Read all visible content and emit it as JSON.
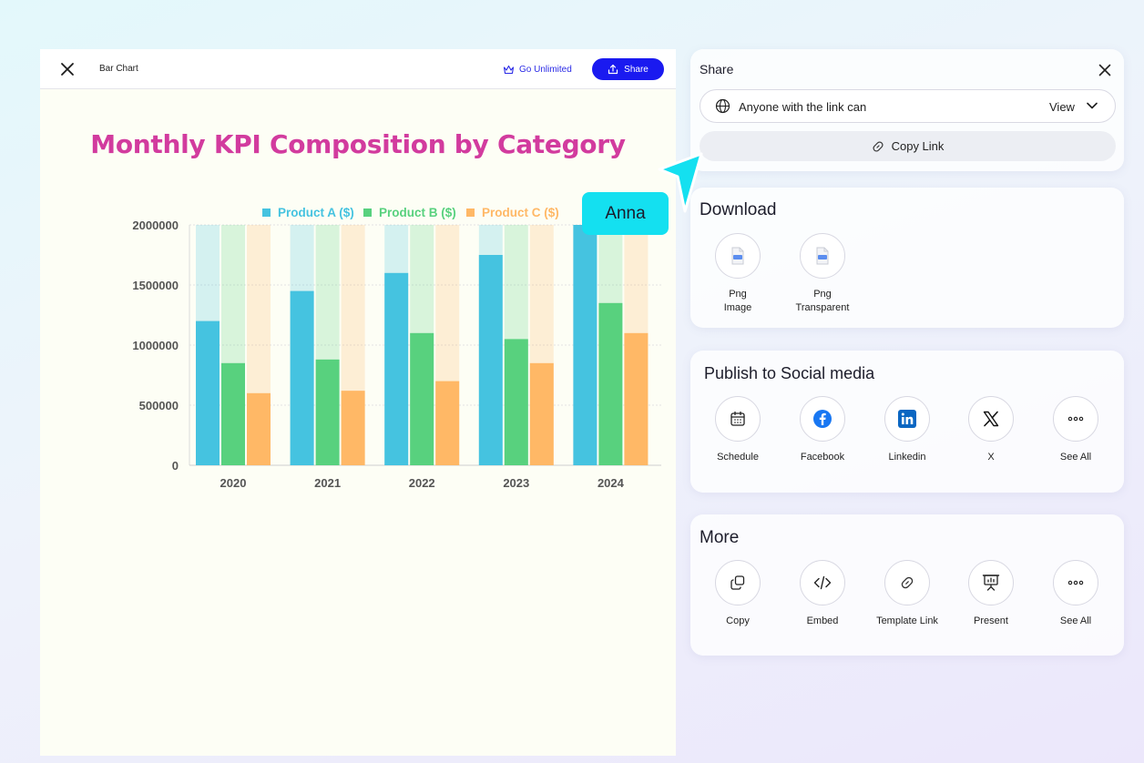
{
  "editor": {
    "doc_title": "Bar Chart",
    "go_unlimited": "Go Unlimited",
    "share_label": "Share"
  },
  "chart_data": {
    "type": "bar",
    "title": "Monthly KPI Composition by Category",
    "categories": [
      "2020",
      "2021",
      "2022",
      "2023",
      "2024"
    ],
    "series": [
      {
        "name": "Product A ($)",
        "color": "#45c3e0",
        "values": [
          1200000,
          1450000,
          1600000,
          1750000,
          2000000
        ]
      },
      {
        "name": "Product B ($)",
        "color": "#58d17e",
        "values": [
          850000,
          880000,
          1100000,
          1050000,
          1350000
        ]
      },
      {
        "name": "Product C ($)",
        "color": "#ffb866",
        "values": [
          600000,
          620000,
          700000,
          850000,
          1100000
        ]
      }
    ],
    "ylim": [
      0,
      2000000
    ],
    "yticks": [
      "0",
      "500000",
      "1000000",
      "1500000",
      "2000000"
    ],
    "legend_position": "top",
    "grid": true
  },
  "share": {
    "title": "Share",
    "access_label": "Anyone with the link can",
    "access_value": "View",
    "copy_link": "Copy Link"
  },
  "download": {
    "title": "Download",
    "items": [
      {
        "label1": "Png",
        "label2": "Image",
        "icon": "png-file-icon"
      },
      {
        "label1": "Png",
        "label2": "Transparent",
        "icon": "png-file-icon"
      }
    ]
  },
  "social": {
    "title": "Publish to Social media",
    "items": [
      {
        "label": "Schedule",
        "icon": "calendar-icon"
      },
      {
        "label": "Facebook",
        "icon": "facebook-icon"
      },
      {
        "label": "Linkedin",
        "icon": "linkedin-icon"
      },
      {
        "label": "X",
        "icon": "x-logo-icon"
      },
      {
        "label": "See All",
        "icon": "more-dots-icon"
      }
    ]
  },
  "more": {
    "title": "More",
    "items": [
      {
        "label": "Copy",
        "icon": "copy-icon"
      },
      {
        "label": "Embed",
        "icon": "code-icon"
      },
      {
        "label": "Template Link",
        "icon": "link-icon"
      },
      {
        "label": "Present",
        "icon": "presentation-icon"
      },
      {
        "label": "See All",
        "icon": "more-dots-icon"
      }
    ]
  },
  "collaborator": {
    "name": "Anna",
    "color": "#14e0f0"
  },
  "colors": {
    "accent": "#1a1af0",
    "title": "#d23b9e"
  }
}
